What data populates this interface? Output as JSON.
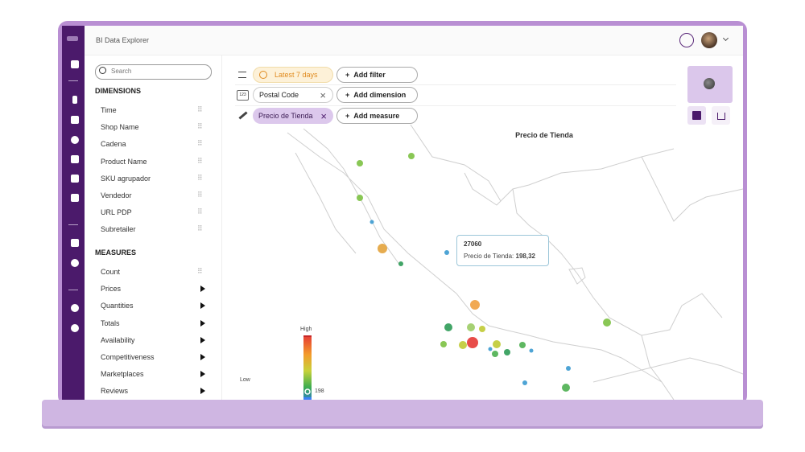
{
  "app": {
    "title": "BI Data Explorer"
  },
  "sidebar": {
    "search_placeholder": "Search",
    "dimensions_title": "DIMENSIONS",
    "dimensions": [
      "Time",
      "Shop Name",
      "Cadena",
      "Product Name",
      "SKU agrupador",
      "Vendedor",
      "URL PDP",
      "Subretailer"
    ],
    "measures_title": "MEASURES",
    "measures": [
      "Count",
      "Prices",
      "Quantities",
      "Totals",
      "Availability",
      "Competitiveness",
      "Marketplaces",
      "Reviews"
    ]
  },
  "toolbar": {
    "filter": "Latest 7 days",
    "add_filter": "Add filter",
    "dimension_icon": "123",
    "dimension": "Postal Code",
    "add_dimension": "Add dimension",
    "measure": "Precio de Tienda",
    "add_measure": "Add measure"
  },
  "map": {
    "title": "Precio de Tienda",
    "tooltip": {
      "title": "27060",
      "label": "Precio de Tienda:",
      "value": "198,32"
    },
    "legend": {
      "high": "High",
      "low": "Low",
      "value": "198"
    }
  }
}
